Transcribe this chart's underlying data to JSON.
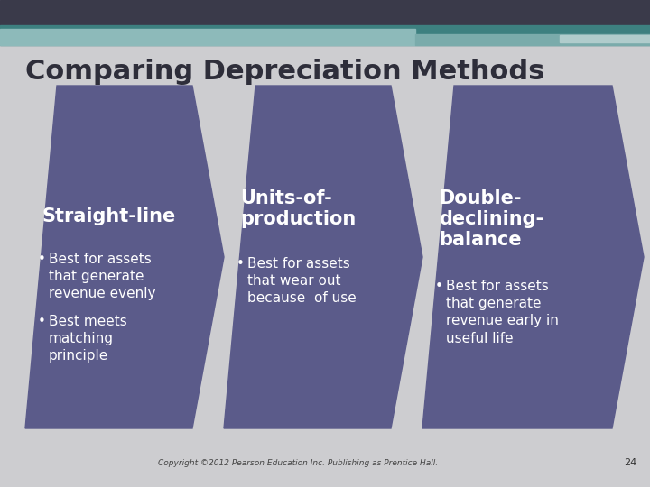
{
  "title": "Comparing Depreciation Methods",
  "title_fontsize": 22,
  "title_color": "#2E2E3A",
  "bg_color": "#CDCDD0",
  "arrow_color": "#5B5B8A",
  "text_color_white": "#FFFFFF",
  "top_dark_color": "#3A3A4A",
  "top_teal_color": "#3D8080",
  "top_light_teal": "#7AABAB",
  "top_lightest": "#B0CCCC",
  "cards": [
    {
      "title": "Straight-line",
      "bullets": [
        "Best for assets\nthat generate\nrevenue evenly",
        "Best meets\nmatching\nprinciple"
      ]
    },
    {
      "title": "Units-of-\nproduction",
      "bullets": [
        "Best for assets\nthat wear out\nbecause  of use"
      ]
    },
    {
      "title": "Double-\ndeclining-\nbalance",
      "bullets": [
        "Best for assets\nthat generate\nrevenue early in\nuseful life"
      ]
    }
  ],
  "footer_text": "Copyright ©2012 Pearson Education Inc. Publishing as Prentice Hall.",
  "page_number": "24"
}
